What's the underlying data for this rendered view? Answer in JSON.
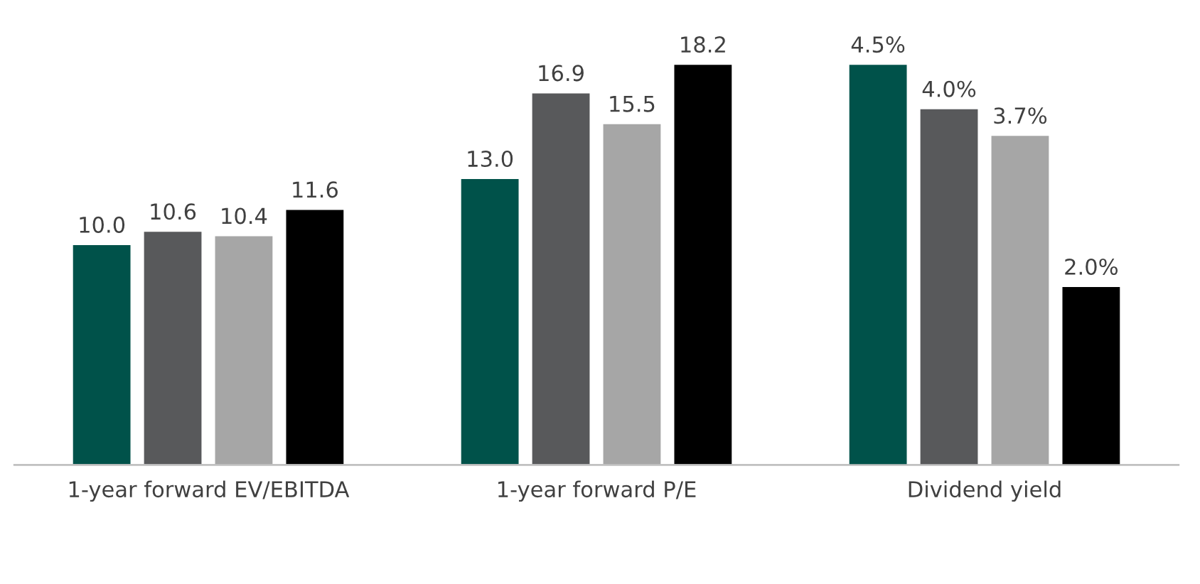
{
  "chart_data": {
    "type": "bar",
    "categories": [
      "1-year forward EV/EBITDA",
      "1-year forward P/E",
      "Dividend yield"
    ],
    "tick_labels": "x",
    "legend": false,
    "grid": false,
    "series": [
      {
        "color": "#00524a",
        "values": [
          10.0,
          13.0,
          null
        ],
        "value_labels": [
          "10.0",
          "13.0",
          null
        ]
      },
      {
        "color": "#58595b",
        "values": [
          10.6,
          16.9,
          null
        ],
        "value_labels": [
          "10.6",
          "16.9",
          null
        ]
      },
      {
        "color": "#a6a6a6",
        "values": [
          10.4,
          15.5,
          null
        ],
        "value_labels": [
          "10.4",
          "15.5",
          null
        ]
      },
      {
        "color": "#000000",
        "values": [
          11.6,
          18.2,
          null
        ],
        "value_labels": [
          "11.6",
          "18.2",
          null
        ]
      },
      {
        "color": "#00524a",
        "axis": "y2",
        "values": [
          null,
          null,
          4.5
        ],
        "value_labels": [
          null,
          null,
          "4.5%"
        ]
      },
      {
        "color": "#58595b",
        "axis": "y2",
        "values": [
          null,
          null,
          4.0
        ],
        "value_labels": [
          null,
          null,
          "4.0%"
        ]
      },
      {
        "color": "#a6a6a6",
        "axis": "y2",
        "values": [
          null,
          null,
          3.7
        ],
        "value_labels": [
          null,
          null,
          "3.7%"
        ]
      },
      {
        "color": "#000000",
        "axis": "y2",
        "values": [
          null,
          null,
          2.0
        ],
        "value_labels": [
          null,
          null,
          "2.0%"
        ]
      }
    ]
  }
}
